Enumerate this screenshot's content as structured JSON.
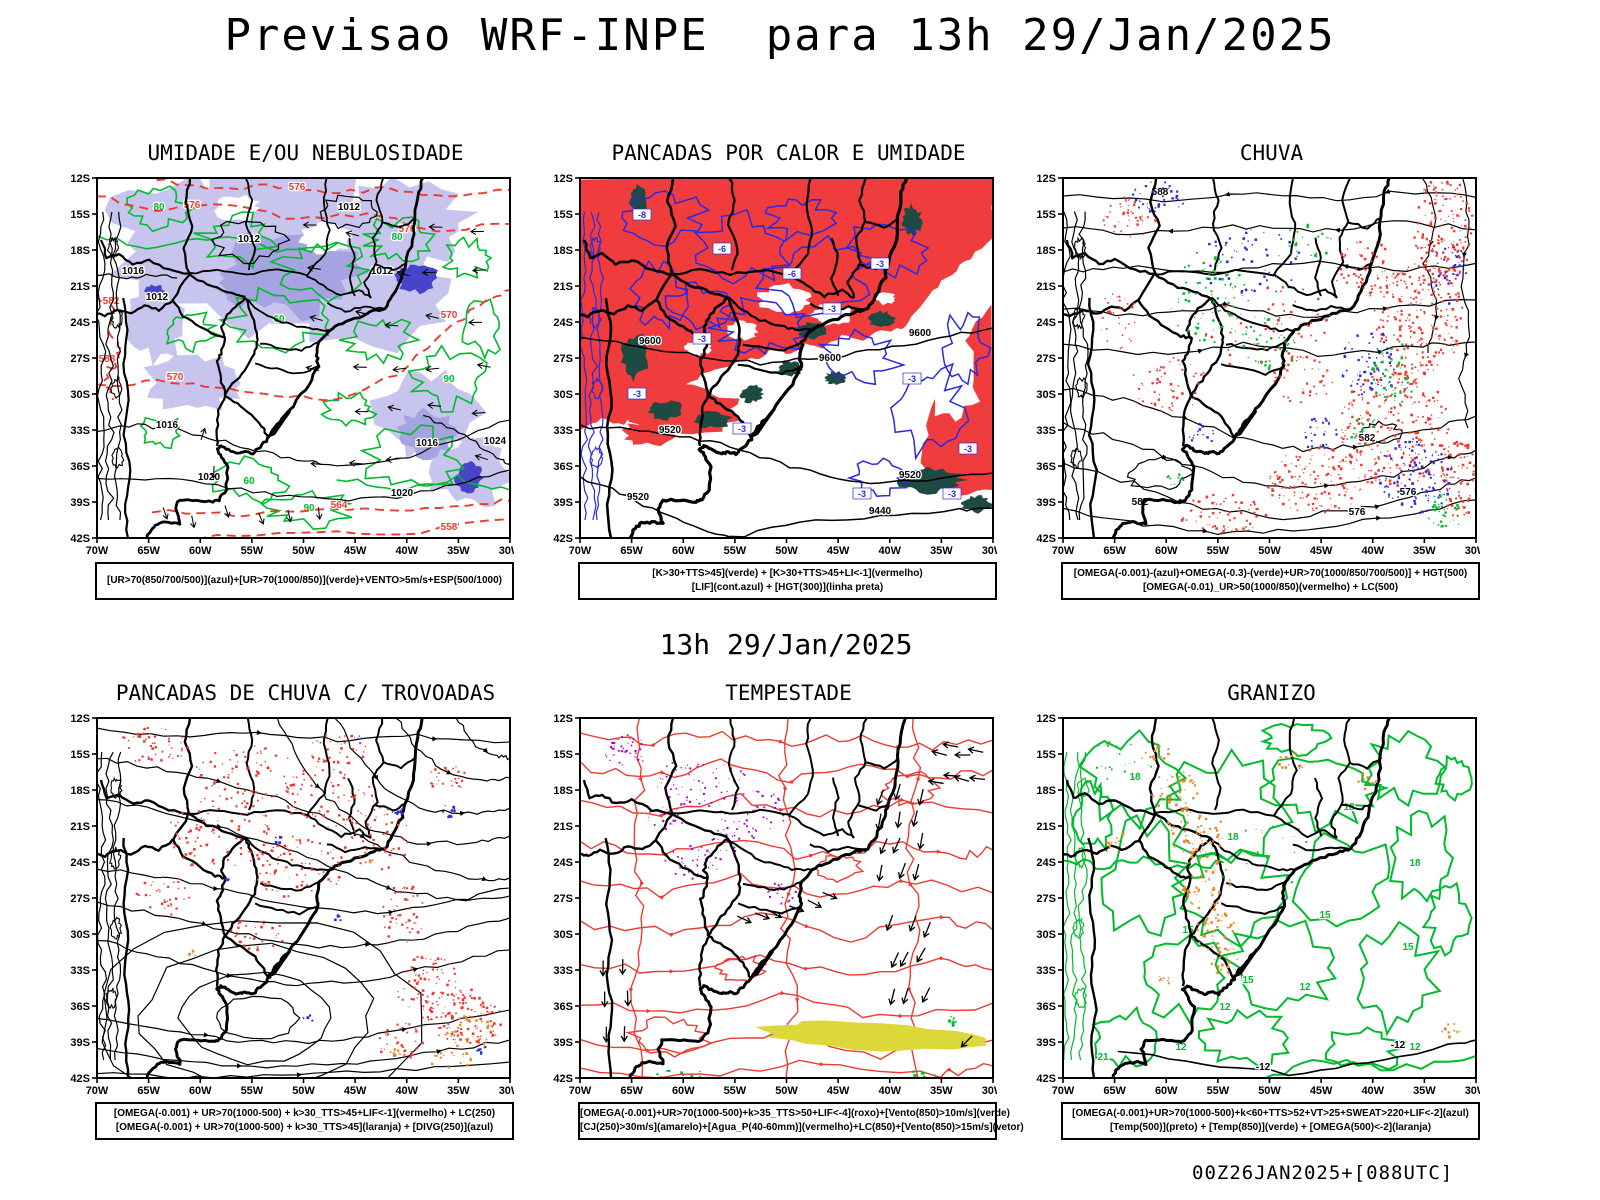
{
  "page": {
    "title": "Previsao WRF-INPE  para 13h 29/Jan/2025",
    "subtitle": "13h 29/Jan/2025",
    "footer": "00Z26JAN2025+[088UTC]"
  },
  "axes": {
    "lat": [
      "12S",
      "15S",
      "18S",
      "21S",
      "24S",
      "27S",
      "30S",
      "33S",
      "36S",
      "39S",
      "42S"
    ],
    "lon": [
      "70W",
      "65W",
      "60W",
      "55W",
      "50W",
      "45W",
      "40W",
      "35W",
      "30W"
    ]
  },
  "colors": {
    "green": "#00bb2d",
    "red": "#ee3a32",
    "red_fill": "#f03c3c",
    "teal": "#1d4a41",
    "lavender": "#c7c5ee",
    "lavender_mid": "#a5a3e0",
    "blue_dark": "#4744cb",
    "blue": "#2a2ae0",
    "orange": "#e8892a",
    "yellow": "#dcd83a",
    "purple": "#aa00cc",
    "black": "#000000"
  },
  "panels": [
    {
      "id": "umidade",
      "title": "UMIDADE E/OU NEBULOSIDADE",
      "caption1": "[UR>70(850/700/500)](azul)+[UR>70(1000/850)](verde)+VENTO>5m/s+ESP(500/1000)",
      "caption2": "",
      "labels": {
        "isobars": [
          "1012",
          "1016",
          "1020",
          "1024"
        ],
        "thickness": [
          "558",
          "564",
          "570",
          "576",
          "582",
          "588"
        ],
        "green": [
          "60",
          "80",
          "90"
        ]
      }
    },
    {
      "id": "pancadas-calor",
      "title": "PANCADAS POR CALOR E UMIDADE",
      "caption1": "[K>30+TTS>45](verde) + [K>30+TTS>45+LI<-1](vermelho)",
      "caption2": "[LIF](cont.azul) + [HGT(300)](linha preta)",
      "labels": {
        "hgt": [
          "9600",
          "9520",
          "9440"
        ],
        "lif": [
          "-3",
          "-6",
          "-8"
        ]
      }
    },
    {
      "id": "chuva",
      "title": "CHUVA",
      "caption1": "[OMEGA(-0.001)-(azul)+OMEGA(-0.3)-(verde)+UR>70(1000/850/700/500)] + HGT(500)",
      "caption2": "[OMEGA(-0.01)_UR>50(1000/850)(vermelho) + LC(500)",
      "labels": {
        "hgt": [
          "576",
          "582",
          "588"
        ]
      }
    },
    {
      "id": "trovoadas",
      "title": "PANCADAS DE CHUVA C/ TROVOADAS",
      "caption1": "[OMEGA(-0.001) + UR>70(1000-500) + k>30_TTS>45+LIF<-1](vermelho) + LC(250)",
      "caption2": "[OMEGA(-0.001) + UR>70(1000-500) + k>30_TTS>45](laranja) + [DIVG(250)](azul)",
      "labels": {}
    },
    {
      "id": "tempestade",
      "title": "TEMPESTADE",
      "caption1": "[OMEGA(-0.001)+UR>70(1000-500)+k>35_TTS>50+LIF<-4](roxo)+[Vento(850)>10m/s](verde)",
      "caption2": "[CJ(250)>30m/s](amarelo)+[Agua_P(40-60mm)](vermelho)+LC(850)+[Vento(850)>15m/s](vetor)",
      "labels": {}
    },
    {
      "id": "granizo",
      "title": "GRANIZO",
      "caption1": "[OMEGA(-0.001)+UR>70(1000-500)+k<60+TTS>52+VT>25+SWEAT>220+LIF<-2](azul)",
      "caption2": "[Temp(500)](preto) + [Temp(850)](verde) + [OMEGA(500)<-2](laranja)",
      "labels": {
        "green": [
          "12",
          "15",
          "18",
          "21"
        ],
        "black": [
          "-12"
        ]
      }
    }
  ]
}
